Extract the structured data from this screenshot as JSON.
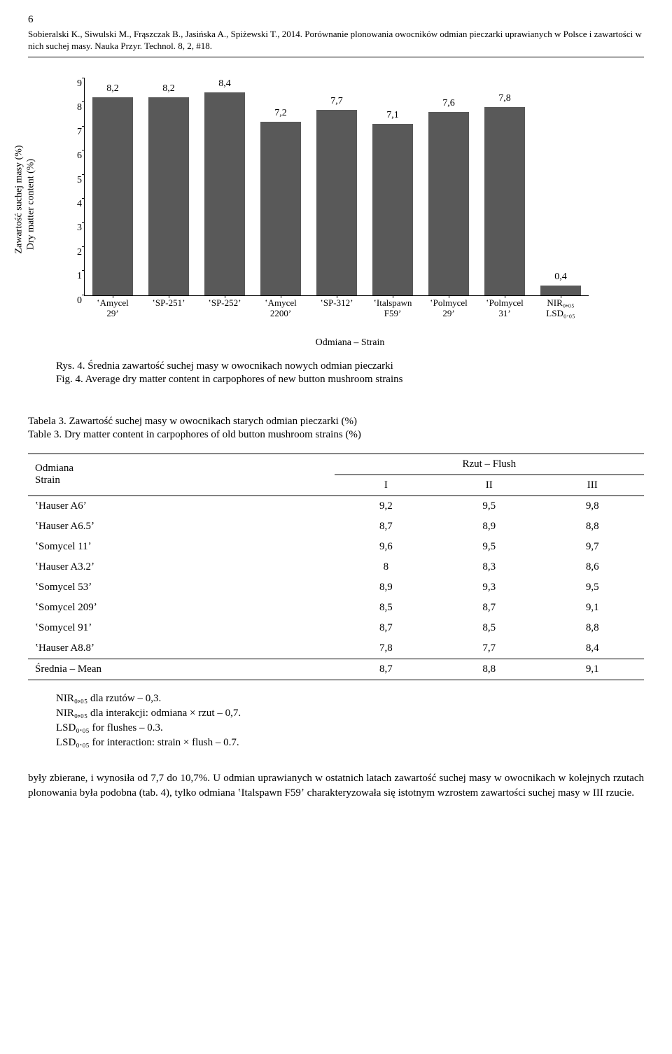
{
  "page_number": "6",
  "header_text": "Sobieralski K., Siwulski M., Frąszczak B., Jasińska A., Spiżewski T., 2014. Porównanie plonowania owocników odmian pieczarki uprawianych w Polsce i zawartości w nich suchej masy. Nauka Przyr. Technol. 8, 2, #18.",
  "chart": {
    "y_label_line1": "Zawartość suchej masy (%)",
    "y_label_line2": "Dry matter content (%)",
    "ymax": 9,
    "yticks": [
      "0",
      "1",
      "2",
      "3",
      "4",
      "5",
      "6",
      "7",
      "8",
      "9"
    ],
    "bar_color": "#595959",
    "bars": [
      {
        "label_top": "8,2",
        "value": 8.2,
        "x_line1": "ʽAmycel",
        "x_line2": "29ʼ"
      },
      {
        "label_top": "8,2",
        "value": 8.2,
        "x_line1": "ʽSP-251ʼ",
        "x_line2": ""
      },
      {
        "label_top": "8,4",
        "value": 8.4,
        "x_line1": "ʽSP-252ʼ",
        "x_line2": ""
      },
      {
        "label_top": "7,2",
        "value": 7.2,
        "x_line1": "ʽAmycel",
        "x_line2": "2200ʼ"
      },
      {
        "label_top": "7,7",
        "value": 7.7,
        "x_line1": "ʽSP-312ʼ",
        "x_line2": ""
      },
      {
        "label_top": "7,1",
        "value": 7.1,
        "x_line1": "ʽItalspawn",
        "x_line2": "F59ʼ"
      },
      {
        "label_top": "7,6",
        "value": 7.6,
        "x_line1": "ʽPolmycel",
        "x_line2": "29ʼ"
      },
      {
        "label_top": "7,8",
        "value": 7.8,
        "x_line1": "ʽPolmycel",
        "x_line2": "31ʼ"
      },
      {
        "label_top": "0,4",
        "value": 0.4,
        "x_line1": "NIR₀,₀₅",
        "x_line2": "LSD₀.₀₅"
      }
    ],
    "x_axis_title": "Odmiana – Strain"
  },
  "fig_caption_line1": "Rys. 4. Średnia zawartość suchej masy w owocnikach nowych odmian pieczarki",
  "fig_caption_line2": "Fig. 4. Average dry matter content in carpophores of new button mushroom strains",
  "table_caption_line1": "Tabela 3. Zawartość suchej masy w owocnikach starych odmian pieczarki (%)",
  "table_caption_line2": "Table 3. Dry matter content in carpophores of old button mushroom strains (%)",
  "table": {
    "col0_header_line1": "Odmiana",
    "col0_header_line2": "Strain",
    "flush_header": "Rzut – Flush",
    "subcols": [
      "I",
      "II",
      "III"
    ],
    "rows": [
      [
        "ʽHauser A6ʼ",
        "9,2",
        "9,5",
        "9,8"
      ],
      [
        "ʽHauser A6.5ʼ",
        "8,7",
        "8,9",
        "8,8"
      ],
      [
        "ʽSomycel 11ʼ",
        "9,6",
        "9,5",
        "9,7"
      ],
      [
        "ʽHauser A3.2ʼ",
        "8",
        "8,3",
        "8,6"
      ],
      [
        "ʽSomycel 53ʼ",
        "8,9",
        "9,3",
        "9,5"
      ],
      [
        "ʽSomycel 209ʼ",
        "8,5",
        "8,7",
        "9,1"
      ],
      [
        "ʽSomycel 91ʼ",
        "8,7",
        "8,5",
        "8,8"
      ],
      [
        "ʽHauser A8.8ʼ",
        "7,8",
        "7,7",
        "8,4"
      ]
    ],
    "mean_row": [
      "Średnia – Mean",
      "8,7",
      "8,8",
      "9,1"
    ]
  },
  "notes": [
    "NIR₀,₀₅ dla rzutów – 0,3.",
    "NIR₀,₀₅ dla interakcji: odmiana × rzut – 0,7.",
    "LSD₀.₀₅ for flushes – 0.3.",
    "LSD₀.₀₅ for interaction: strain × flush – 0.7."
  ],
  "body": "były zbierane, i wynosiła od 7,7 do 10,7%. U odmian uprawianych w ostatnich latach zawartość suchej masy w owocnikach w kolejnych rzutach plonowania była podobna (tab. 4), tylko odmiana ʽItalspawn F59ʼ charakteryzowała się istotnym wzrostem zawartości suchej masy w III rzucie."
}
